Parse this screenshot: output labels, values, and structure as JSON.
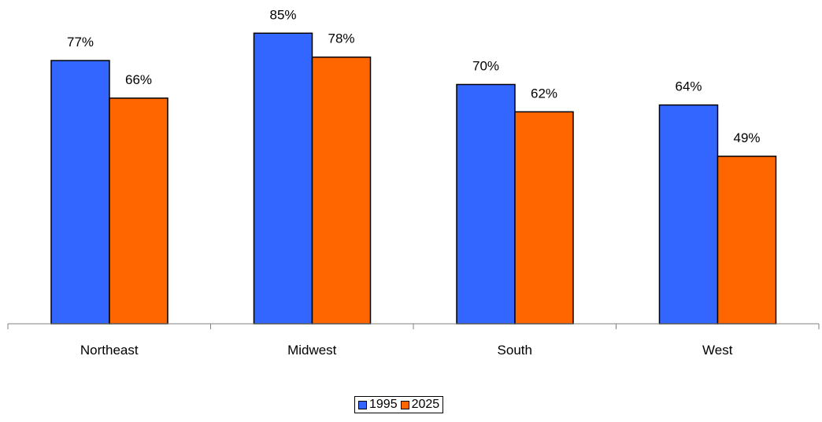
{
  "chart_data": {
    "type": "bar",
    "title": "",
    "xlabel": "",
    "ylabel": "",
    "categories": [
      "Northeast",
      "Midwest",
      "South",
      "West"
    ],
    "series": [
      {
        "name": "1995",
        "color": "#3366FF",
        "values": [
          77,
          85,
          70,
          64
        ],
        "labels": [
          "77%",
          "85%",
          "70%",
          "64%"
        ]
      },
      {
        "name": "2025",
        "color": "#FF6600",
        "values": [
          66,
          78,
          62,
          49
        ],
        "labels": [
          "66%",
          "78%",
          "62%",
          "49%"
        ]
      }
    ],
    "value_unit": "%",
    "ylim": [
      0,
      100
    ],
    "grid": false,
    "y_axis_visible": false,
    "legend_position": "bottom-center"
  }
}
